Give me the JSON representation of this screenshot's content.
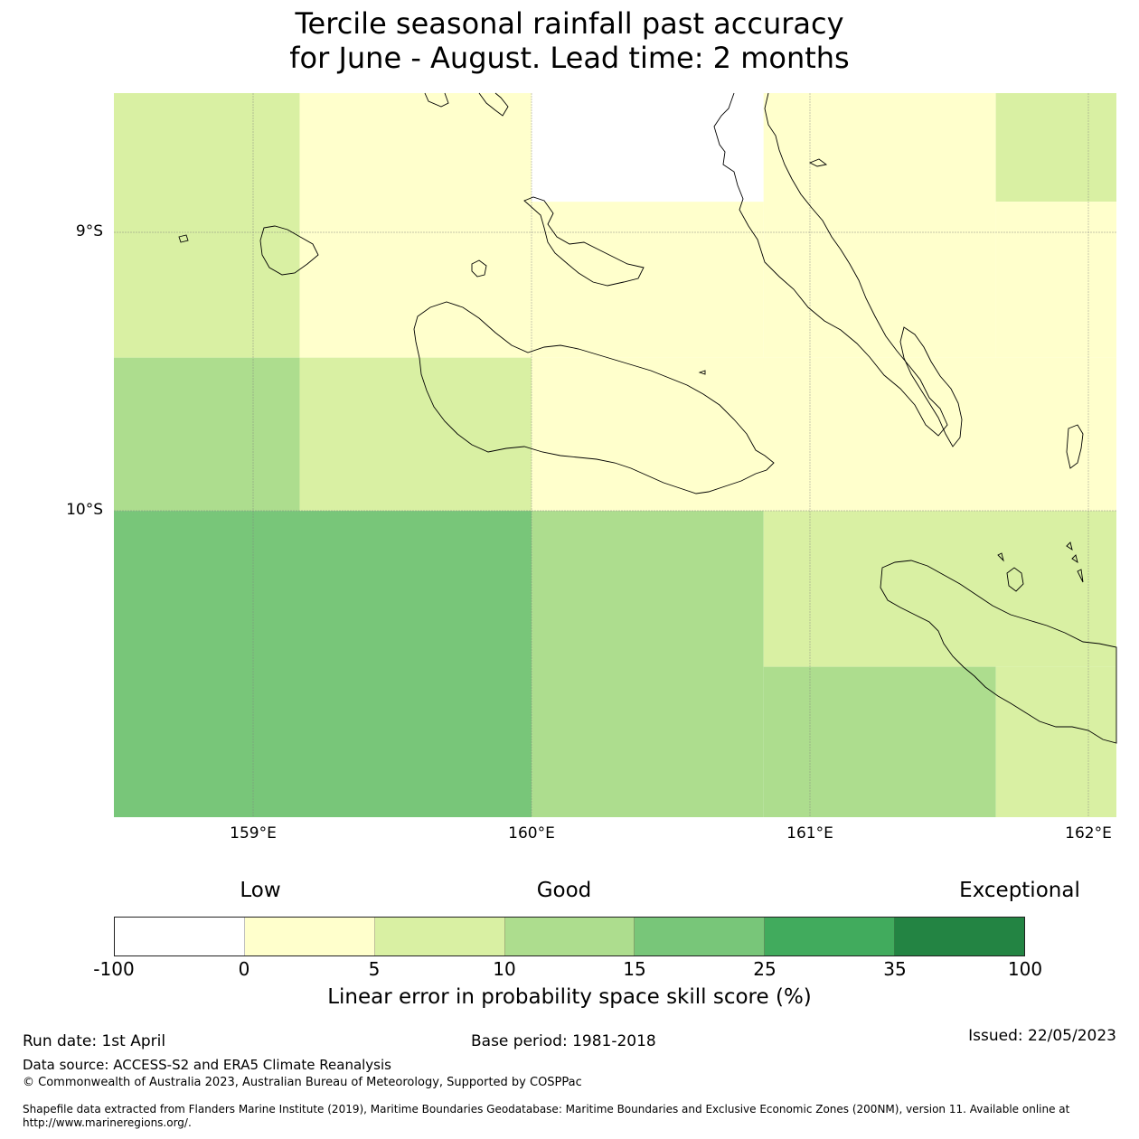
{
  "title": {
    "line1": "Tercile seasonal rainfall past accuracy",
    "line2": "for June - August. Lead time: 2 months"
  },
  "map": {
    "lat_labels": [
      "9°S",
      "10°S"
    ],
    "lon_labels": [
      "159°E",
      "160°E",
      "161°E",
      "162°E"
    ],
    "extent": {
      "lon_min": 158.5,
      "lon_max": 162.1,
      "lat_min": -11.1,
      "lat_max": -8.5
    },
    "coastline_color": "#000000",
    "gridline_color": "#7f7f7f",
    "grid_cells": [
      {
        "lon": [
          158.5,
          159.167
        ],
        "lat": [
          -8.5,
          -9.45
        ],
        "skill_class": "5-10"
      },
      {
        "lon": [
          159.167,
          160.0
        ],
        "lat": [
          -8.5,
          -9.45
        ],
        "skill_class": "0-5"
      },
      {
        "lon": [
          160.0,
          160.833
        ],
        "lat": [
          -8.5,
          -8.89
        ],
        "skill_class": "-100-0"
      },
      {
        "lon": [
          160.0,
          160.833
        ],
        "lat": [
          -8.89,
          -9.45
        ],
        "skill_class": "0-5"
      },
      {
        "lon": [
          160.833,
          161.667
        ],
        "lat": [
          -8.5,
          -9.45
        ],
        "skill_class": "0-5"
      },
      {
        "lon": [
          161.667,
          162.1
        ],
        "lat": [
          -8.5,
          -8.89
        ],
        "skill_class": "5-10"
      },
      {
        "lon": [
          161.667,
          162.1
        ],
        "lat": [
          -8.89,
          -9.45
        ],
        "skill_class": "0-5"
      },
      {
        "lon": [
          158.5,
          159.167
        ],
        "lat": [
          -9.45,
          -10.0
        ],
        "skill_class": "10-15"
      },
      {
        "lon": [
          159.167,
          160.0
        ],
        "lat": [
          -9.45,
          -10.0
        ],
        "skill_class": "5-10"
      },
      {
        "lon": [
          160.0,
          162.1
        ],
        "lat": [
          -9.45,
          -10.0
        ],
        "skill_class": "0-5"
      },
      {
        "lon": [
          158.5,
          160.0
        ],
        "lat": [
          -10.0,
          -11.1
        ],
        "skill_class": "15-25"
      },
      {
        "lon": [
          160.0,
          160.833
        ],
        "lat": [
          -10.0,
          -11.1
        ],
        "skill_class": "10-15"
      },
      {
        "lon": [
          160.833,
          162.1
        ],
        "lat": [
          -10.0,
          -10.56
        ],
        "skill_class": "5-10"
      },
      {
        "lon": [
          160.833,
          161.667
        ],
        "lat": [
          -10.56,
          -11.1
        ],
        "skill_class": "10-15"
      },
      {
        "lon": [
          161.667,
          162.1
        ],
        "lat": [
          -10.56,
          -11.1
        ],
        "skill_class": "5-10"
      }
    ]
  },
  "legend": {
    "categories": [
      "Low",
      "Good",
      "Exceptional"
    ],
    "ticks": [
      "-100",
      "0",
      "5",
      "10",
      "15",
      "25",
      "35",
      "100"
    ],
    "colors": [
      "#ffffff",
      "#ffffcc",
      "#d9f0a3",
      "#addd8e",
      "#78c679",
      "#41ab5d",
      "#238443"
    ],
    "label": "Linear error in probability space skill score (%)"
  },
  "footer": {
    "run_date": "Run date: 1st April",
    "base_period": "Base period: 1981-2018",
    "issued": "Issued: 22/05/2023",
    "data_source": "Data source: ACCESS-S2 and ERA5 Climate Reanalysis",
    "copyright": "© Commonwealth of Australia 2023, Australian Bureau of Meteorology, Supported by COSPPac",
    "shapefile": "Shapefile data extracted from Flanders Marine Institute (2019), Maritime Boundaries Geodatabase: Maritime Boundaries and Exclusive Economic Zones (200NM), version 11. Available online at http://www.marineregions.org/."
  }
}
